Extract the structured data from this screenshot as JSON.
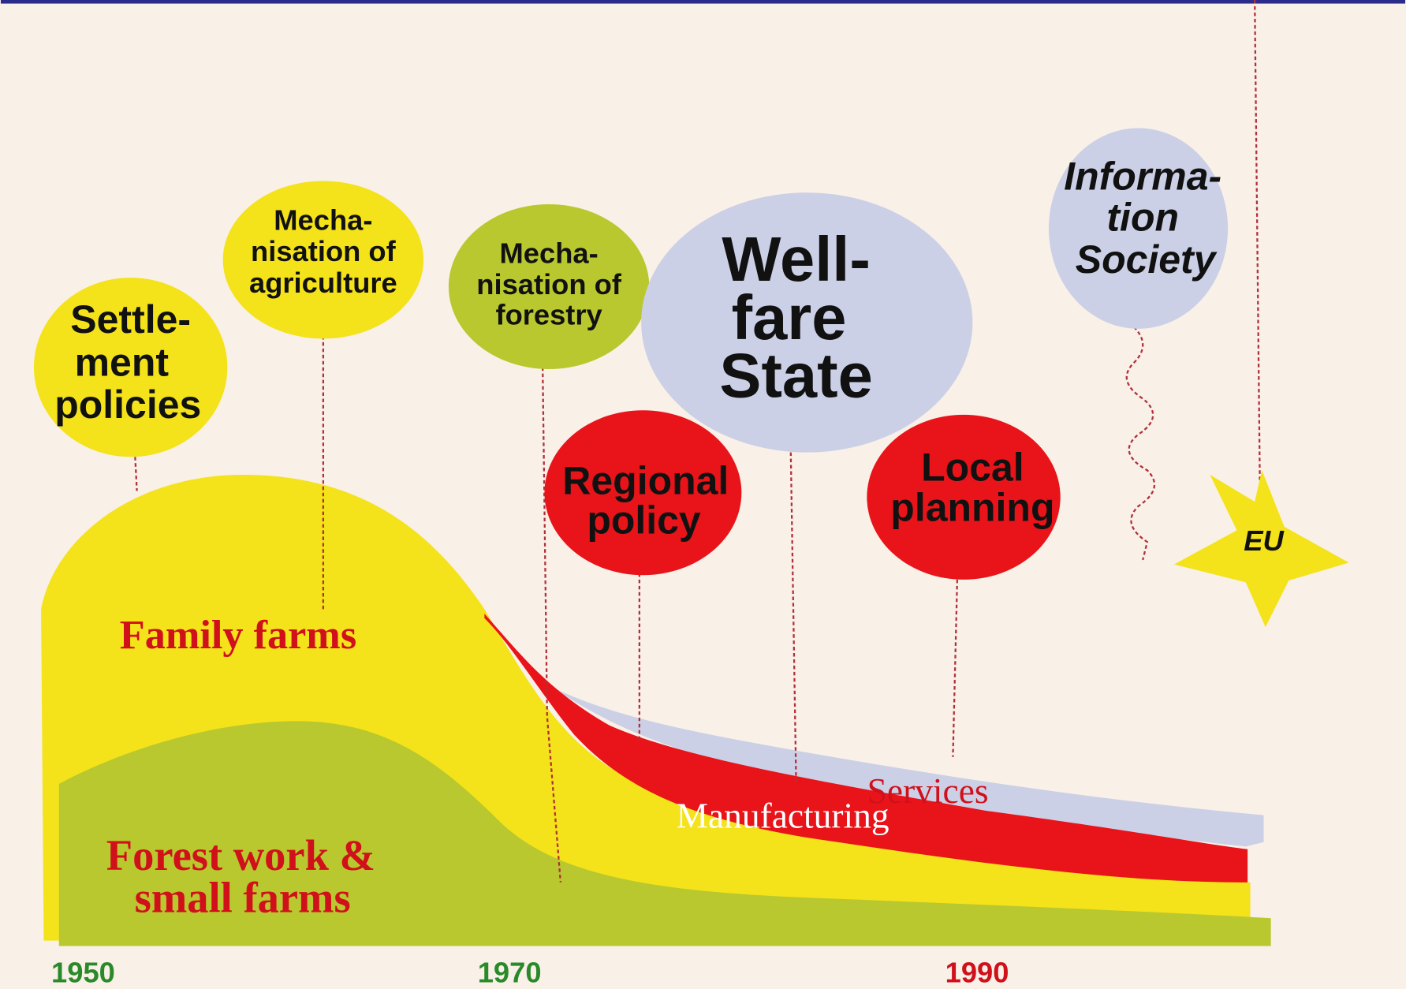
{
  "balloons": [
    {
      "lines": [
        "Settle-",
        "ment",
        "policies"
      ]
    },
    {
      "lines": [
        "Mecha-",
        "nisation of",
        "agriculture"
      ]
    },
    {
      "lines": [
        "Mecha-",
        "nisation of",
        "forestry"
      ]
    },
    {
      "lines": [
        "Well-",
        "fare",
        "State"
      ]
    },
    {
      "lines": [
        "Regional",
        "policy"
      ]
    },
    {
      "lines": [
        "Local",
        "planning"
      ]
    },
    {
      "lines": [
        "Informa-",
        "tion",
        "Society"
      ]
    },
    {
      "lines": [
        "EU"
      ]
    }
  ],
  "areas": {
    "family_farms": "Family farms",
    "forest_work": [
      "Forest work &",
      "small farms"
    ],
    "services": "Services",
    "manufacturing": "Manufacturing"
  },
  "years": [
    "1950",
    "1970",
    "1990"
  ]
}
